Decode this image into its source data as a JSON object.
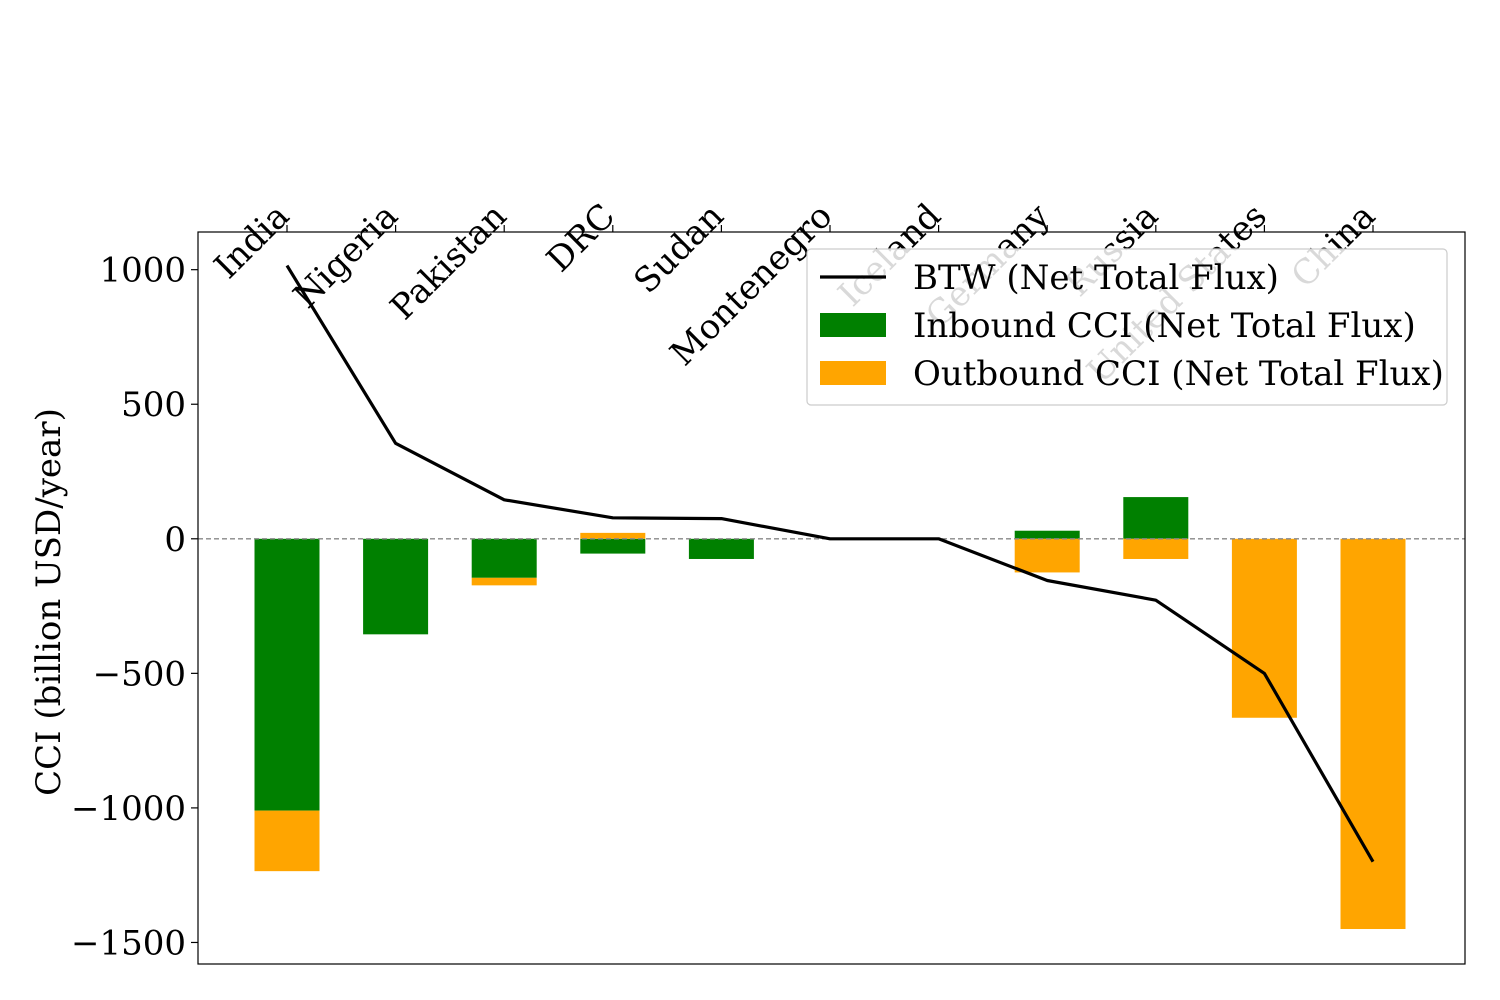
{
  "chart_data": {
    "type": "bar",
    "categories": [
      "India",
      "Nigeria",
      "Pakistan",
      "DRC",
      "Sudan",
      "Montenegro",
      "Iceland",
      "Germany",
      "Russia",
      "United States",
      "China"
    ],
    "series": [
      {
        "name": "Inbound CCI (Net Total Flux)",
        "kind": "bar",
        "color": "#008000",
        "values": [
          -1010,
          -355,
          -145,
          -55,
          -75,
          0,
          0,
          30,
          155,
          0,
          0
        ]
      },
      {
        "name": "Outbound CCI (Net Total Flux)",
        "kind": "bar",
        "color": "#ffa500",
        "values": [
          -225,
          0,
          -28,
          22,
          0,
          0,
          0,
          -125,
          -75,
          -665,
          -1450
        ]
      },
      {
        "name": "BTW (Net Total Flux)",
        "kind": "line",
        "color": "#000000",
        "values": [
          1015,
          355,
          145,
          78,
          75,
          0,
          0,
          -155,
          -228,
          -500,
          -1200
        ]
      }
    ],
    "xlabel": "",
    "ylabel": "CCI (billion USD/year)",
    "ylim": [
      -1580,
      1140
    ],
    "yticks": [
      1000,
      500,
      0,
      -500,
      -1000,
      -1500
    ],
    "xaxis_position": "top",
    "reference_line": 0,
    "legend_position": "top-right",
    "grid": false
  }
}
